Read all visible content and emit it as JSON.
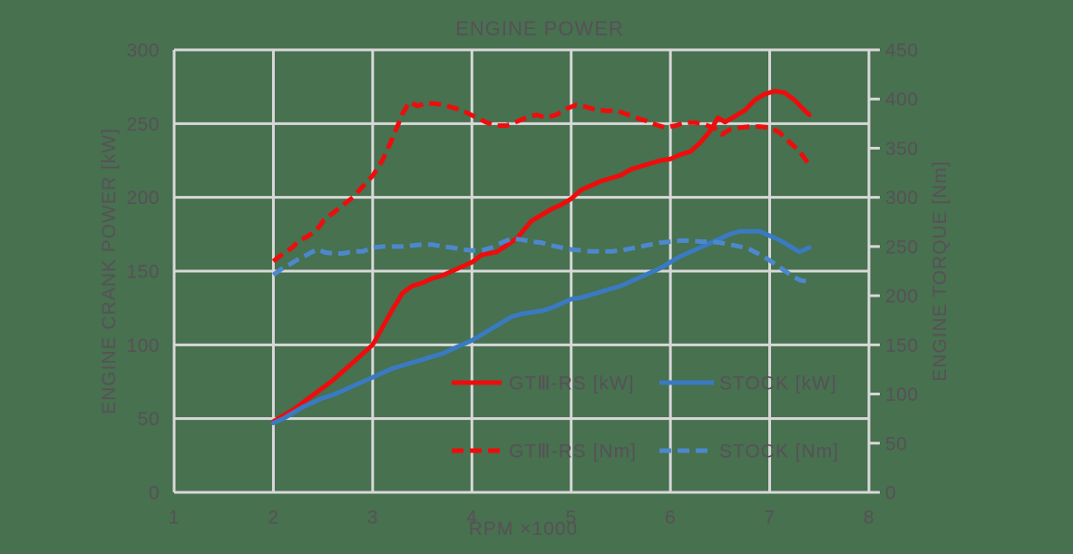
{
  "title": "ENGINE POWER",
  "colors": {
    "background": "#47714f",
    "gridline": "#d8d8d8",
    "text": "#585058",
    "red": "#ef0c0c",
    "blue_solid": "#3a7ac2",
    "blue_dashed": "#4c88ce"
  },
  "chart_data": {
    "type": "line",
    "title": "ENGINE POWER",
    "xlabel": "RPM ×1000",
    "ylabel_left": "ENGINE CRANK POWER [kW]",
    "ylabel_right": "ENGINE TORQUE [Nm]",
    "xlim": [
      1,
      8
    ],
    "xtick_step": 1,
    "ylim_left": [
      0,
      300
    ],
    "ytick_step_left": 50,
    "ylim_right": [
      0,
      450
    ],
    "ytick_step_right": 50,
    "grid": true,
    "legend_position": "inside-bottom-center",
    "series": [
      {
        "name": "GTⅢ-RS [kW]",
        "axis": "left",
        "style": "solid",
        "color": "#ef0c0c",
        "points": [
          [
            2.0,
            48
          ],
          [
            2.1,
            52
          ],
          [
            2.2,
            56
          ],
          [
            2.3,
            61
          ],
          [
            2.4,
            66
          ],
          [
            2.5,
            71
          ],
          [
            2.6,
            76
          ],
          [
            2.7,
            82
          ],
          [
            2.8,
            88
          ],
          [
            2.9,
            94
          ],
          [
            3.0,
            100
          ],
          [
            3.1,
            112
          ],
          [
            3.2,
            124
          ],
          [
            3.3,
            135
          ],
          [
            3.4,
            140
          ],
          [
            3.5,
            142
          ],
          [
            3.6,
            145
          ],
          [
            3.7,
            147
          ],
          [
            3.8,
            150
          ],
          [
            3.9,
            153
          ],
          [
            4.0,
            156
          ],
          [
            4.1,
            161
          ],
          [
            4.25,
            163
          ],
          [
            4.45,
            172
          ],
          [
            4.6,
            184
          ],
          [
            4.7,
            188
          ],
          [
            4.8,
            192
          ],
          [
            4.9,
            195
          ],
          [
            5.0,
            199
          ],
          [
            5.1,
            205
          ],
          [
            5.2,
            208
          ],
          [
            5.3,
            211
          ],
          [
            5.4,
            213
          ],
          [
            5.5,
            215
          ],
          [
            5.6,
            219
          ],
          [
            5.75,
            222
          ],
          [
            5.9,
            225
          ],
          [
            6.0,
            226
          ],
          [
            6.1,
            229
          ],
          [
            6.2,
            231
          ],
          [
            6.3,
            237
          ],
          [
            6.4,
            245
          ],
          [
            6.48,
            254
          ],
          [
            6.55,
            251
          ],
          [
            6.65,
            255
          ],
          [
            6.75,
            259
          ],
          [
            6.85,
            266
          ],
          [
            6.95,
            270
          ],
          [
            7.05,
            272
          ],
          [
            7.15,
            271
          ],
          [
            7.25,
            266
          ],
          [
            7.35,
            259
          ],
          [
            7.4,
            256
          ]
        ]
      },
      {
        "name": "STOCK [kW]",
        "axis": "left",
        "style": "solid",
        "color": "#3a7ac2",
        "points": [
          [
            2.0,
            47
          ],
          [
            2.1,
            50
          ],
          [
            2.2,
            54
          ],
          [
            2.3,
            58
          ],
          [
            2.4,
            61
          ],
          [
            2.5,
            64
          ],
          [
            2.6,
            66
          ],
          [
            2.7,
            69
          ],
          [
            2.8,
            72
          ],
          [
            2.9,
            75
          ],
          [
            3.0,
            78
          ],
          [
            3.1,
            81
          ],
          [
            3.2,
            84
          ],
          [
            3.3,
            86
          ],
          [
            3.4,
            88
          ],
          [
            3.5,
            90
          ],
          [
            3.6,
            92
          ],
          [
            3.7,
            94
          ],
          [
            3.8,
            97
          ],
          [
            3.9,
            100
          ],
          [
            4.0,
            103
          ],
          [
            4.1,
            107
          ],
          [
            4.2,
            111
          ],
          [
            4.3,
            115
          ],
          [
            4.4,
            119
          ],
          [
            4.5,
            121
          ],
          [
            4.6,
            122
          ],
          [
            4.7,
            123
          ],
          [
            4.8,
            125
          ],
          [
            4.9,
            128
          ],
          [
            5.0,
            131
          ],
          [
            5.1,
            132
          ],
          [
            5.2,
            134
          ],
          [
            5.3,
            136
          ],
          [
            5.4,
            138
          ],
          [
            5.5,
            140
          ],
          [
            5.6,
            143
          ],
          [
            5.7,
            146
          ],
          [
            5.8,
            149
          ],
          [
            5.9,
            152
          ],
          [
            6.0,
            156
          ],
          [
            6.1,
            160
          ],
          [
            6.2,
            163
          ],
          [
            6.3,
            166
          ],
          [
            6.4,
            169
          ],
          [
            6.5,
            172
          ],
          [
            6.6,
            175
          ],
          [
            6.7,
            177
          ],
          [
            6.8,
            177
          ],
          [
            6.9,
            177
          ],
          [
            7.0,
            174
          ],
          [
            7.1,
            171
          ],
          [
            7.2,
            167
          ],
          [
            7.3,
            163
          ],
          [
            7.4,
            166
          ]
        ]
      },
      {
        "name": "GTⅢ-RS [Nm]",
        "axis": "right",
        "style": "dashed",
        "color": "#ef0c0c",
        "points": [
          [
            2.0,
            235
          ],
          [
            2.06,
            240
          ],
          [
            2.12,
            244
          ],
          [
            2.19,
            249
          ],
          [
            2.25,
            255
          ],
          [
            2.32,
            259
          ],
          [
            2.4,
            264
          ],
          [
            2.46,
            270
          ],
          [
            2.51,
            277
          ],
          [
            2.6,
            284
          ],
          [
            2.7,
            292
          ],
          [
            2.8,
            300
          ],
          [
            2.9,
            311
          ],
          [
            3.0,
            322
          ],
          [
            3.1,
            338
          ],
          [
            3.2,
            360
          ],
          [
            3.3,
            385
          ],
          [
            3.37,
            397
          ],
          [
            3.45,
            393
          ],
          [
            3.55,
            396
          ],
          [
            3.65,
            395
          ],
          [
            3.75,
            393
          ],
          [
            3.85,
            390
          ],
          [
            3.95,
            386
          ],
          [
            4.05,
            381
          ],
          [
            4.15,
            376
          ],
          [
            4.25,
            373
          ],
          [
            4.35,
            373
          ],
          [
            4.45,
            377
          ],
          [
            4.55,
            381
          ],
          [
            4.65,
            384
          ],
          [
            4.75,
            381
          ],
          [
            4.85,
            384
          ],
          [
            4.95,
            390
          ],
          [
            5.05,
            394
          ],
          [
            5.15,
            392
          ],
          [
            5.25,
            389
          ],
          [
            5.35,
            388
          ],
          [
            5.45,
            388
          ],
          [
            5.55,
            385
          ],
          [
            5.65,
            381
          ],
          [
            5.75,
            378
          ],
          [
            5.85,
            374
          ],
          [
            5.95,
            371
          ],
          [
            6.05,
            373
          ],
          [
            6.15,
            376
          ],
          [
            6.25,
            376
          ],
          [
            6.35,
            374
          ],
          [
            6.45,
            370
          ],
          [
            6.52,
            364
          ],
          [
            6.6,
            369
          ],
          [
            6.7,
            371
          ],
          [
            6.8,
            372
          ],
          [
            6.9,
            372
          ],
          [
            7.0,
            371
          ],
          [
            7.1,
            366
          ],
          [
            7.2,
            356
          ],
          [
            7.3,
            347
          ],
          [
            7.4,
            333
          ]
        ]
      },
      {
        "name": "STOCK [Nm]",
        "axis": "right",
        "style": "dashed",
        "color": "#4c88ce",
        "points": [
          [
            2.0,
            221
          ],
          [
            2.08,
            227
          ],
          [
            2.15,
            231
          ],
          [
            2.23,
            236
          ],
          [
            2.31,
            240
          ],
          [
            2.4,
            245
          ],
          [
            2.45,
            247
          ],
          [
            2.52,
            244
          ],
          [
            2.6,
            243
          ],
          [
            2.7,
            243
          ],
          [
            2.8,
            245
          ],
          [
            2.9,
            245
          ],
          [
            3.0,
            249
          ],
          [
            3.1,
            250
          ],
          [
            3.2,
            250
          ],
          [
            3.3,
            250
          ],
          [
            3.4,
            251
          ],
          [
            3.5,
            252
          ],
          [
            3.6,
            252
          ],
          [
            3.7,
            250
          ],
          [
            3.8,
            249
          ],
          [
            3.9,
            247
          ],
          [
            4.0,
            246
          ],
          [
            4.1,
            246
          ],
          [
            4.2,
            249
          ],
          [
            4.3,
            254
          ],
          [
            4.4,
            258
          ],
          [
            4.5,
            257
          ],
          [
            4.6,
            255
          ],
          [
            4.7,
            254
          ],
          [
            4.8,
            251
          ],
          [
            4.9,
            249
          ],
          [
            5.0,
            247
          ],
          [
            5.1,
            246
          ],
          [
            5.2,
            245
          ],
          [
            5.3,
            245
          ],
          [
            5.4,
            245
          ],
          [
            5.5,
            246
          ],
          [
            5.6,
            248
          ],
          [
            5.7,
            250
          ],
          [
            5.8,
            252
          ],
          [
            5.9,
            254
          ],
          [
            6.0,
            255
          ],
          [
            6.1,
            256
          ],
          [
            6.2,
            256
          ],
          [
            6.3,
            255
          ],
          [
            6.4,
            255
          ],
          [
            6.5,
            254
          ],
          [
            6.6,
            252
          ],
          [
            6.7,
            250
          ],
          [
            6.8,
            247
          ],
          [
            6.9,
            242
          ],
          [
            7.0,
            236
          ],
          [
            7.1,
            229
          ],
          [
            7.2,
            222
          ],
          [
            7.3,
            216
          ],
          [
            7.4,
            214
          ]
        ]
      }
    ]
  }
}
